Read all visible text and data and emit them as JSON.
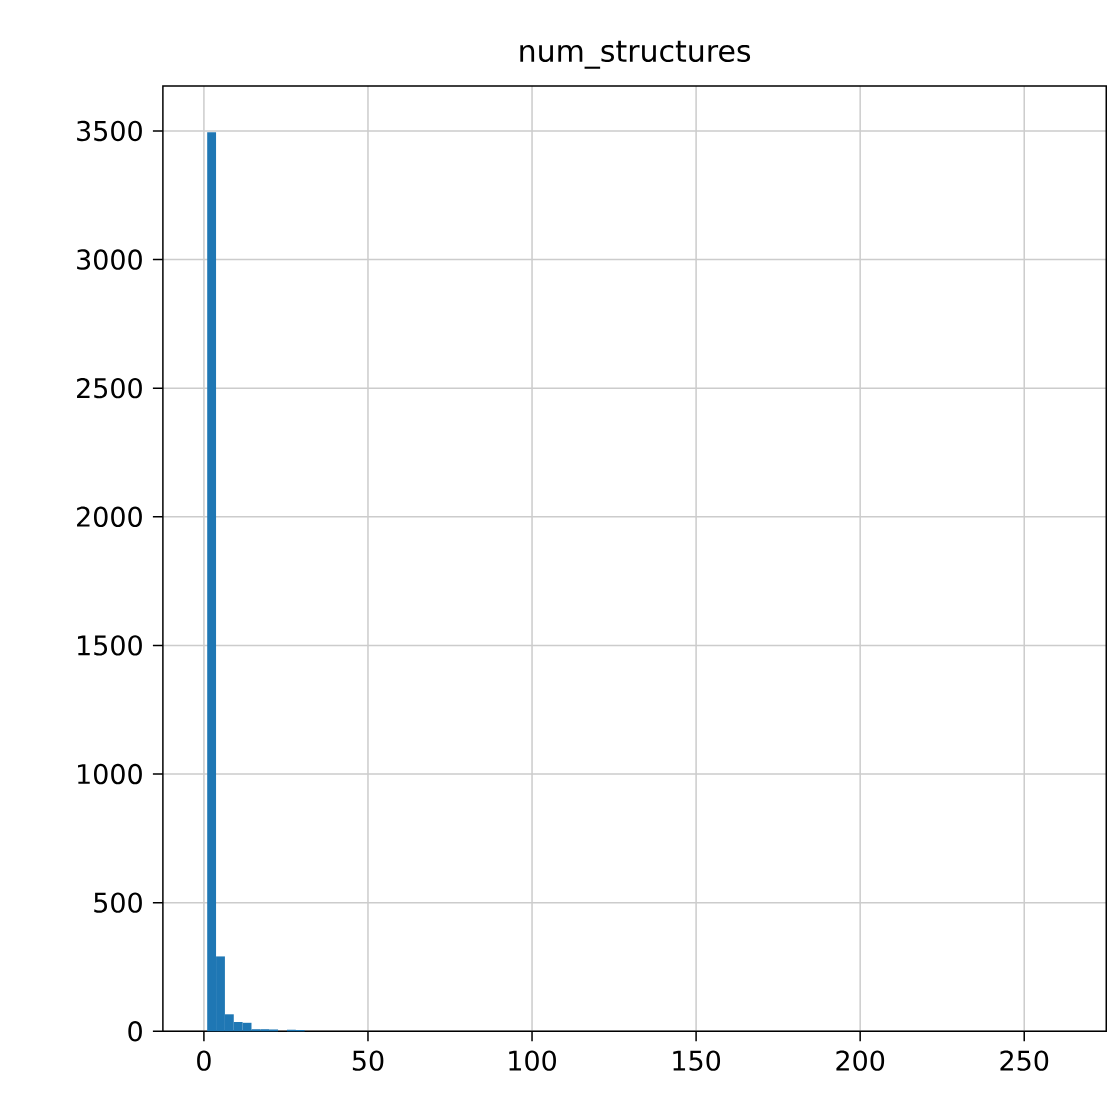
{
  "chart_data": {
    "type": "histogram",
    "title": "num_structures",
    "bins": [
      1,
      3.7,
      6.4,
      9.1,
      11.8,
      14.5,
      17.2,
      19.9,
      22.6,
      25.3,
      28.0,
      30.7
    ],
    "values": [
      3495,
      291,
      66,
      36,
      33,
      8,
      8,
      7,
      0,
      6,
      5
    ],
    "color": "#1f77b4",
    "xlim": [
      -12.5,
      275
    ],
    "xticks": [
      0,
      50,
      100,
      150,
      200,
      250
    ],
    "ylim": [
      0,
      3675
    ],
    "yticks": [
      0,
      500,
      1000,
      1500,
      2000,
      2500,
      3000,
      3500
    ],
    "grid": true
  }
}
